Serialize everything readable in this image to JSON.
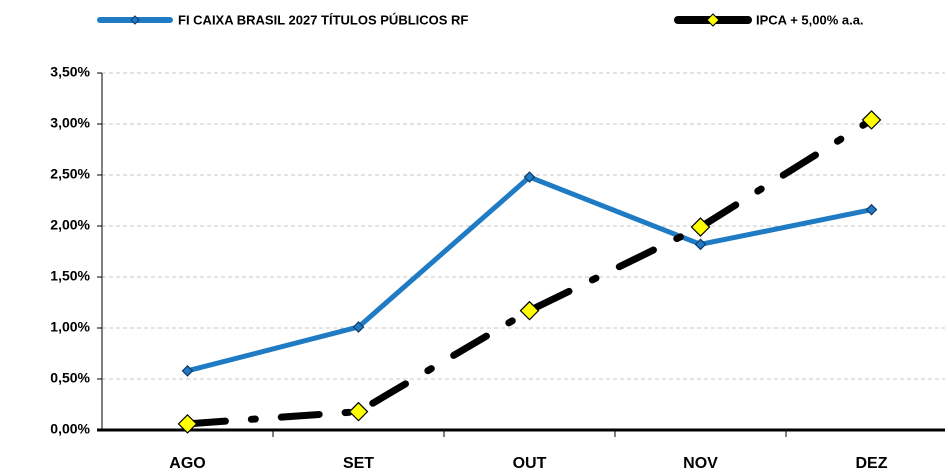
{
  "chart_data": {
    "type": "line",
    "categories": [
      "AGO",
      "SET",
      "OUT",
      "NOV",
      "DEZ"
    ],
    "series": [
      {
        "name": "FI CAIXA BRASIL 2027 TÍTULOS PÚBLICOS RF",
        "color": "#1f7bc4",
        "values": [
          0.58,
          1.01,
          2.48,
          1.82,
          2.16
        ]
      },
      {
        "name": "IPCA + 5,00% a.a.",
        "color": "#000000",
        "marker_color": "#ffff00",
        "values": [
          0.06,
          0.18,
          1.17,
          1.99,
          3.04
        ]
      }
    ],
    "ylim": [
      0,
      3.5
    ],
    "yticks": [
      {
        "value": 0,
        "label": "0,00%"
      },
      {
        "value": 0.5,
        "label": "0,50%"
      },
      {
        "value": 1,
        "label": "1,00%"
      },
      {
        "value": 1.5,
        "label": "1,50%"
      },
      {
        "value": 2,
        "label": "2,00%"
      },
      {
        "value": 2.5,
        "label": "2,50%"
      },
      {
        "value": 3,
        "label": "3,00%"
      },
      {
        "value": 3.5,
        "label": "3,50%"
      }
    ],
    "grid": true,
    "legend": "top"
  }
}
